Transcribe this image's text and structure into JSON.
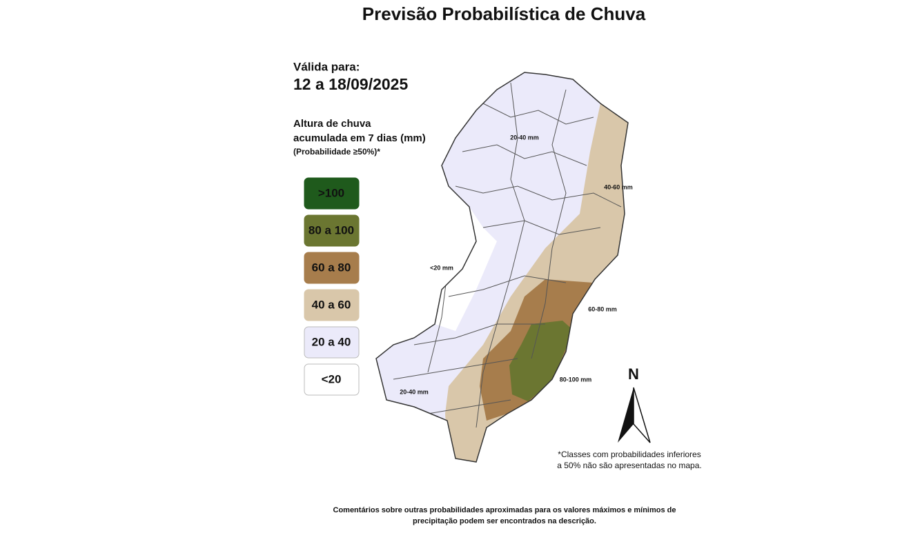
{
  "title": "Previsão Probabilística de Chuva",
  "validity": {
    "label": "Válida para:",
    "period": "12 a 18/09/2025"
  },
  "legend": {
    "title_lines": [
      "Altura de chuva",
      "acumulada em 7 dias (mm)"
    ],
    "subtitle": "(Probabilidade ≥50%)*",
    "items": [
      {
        "label": ">100",
        "color": "#1f5a1c"
      },
      {
        "label": "80 a 100",
        "color": "#6b7631"
      },
      {
        "label": "60 a 80",
        "color": "#a77d4c"
      },
      {
        "label": "40 a 60",
        "color": "#d9c7aa"
      },
      {
        "label": "20 a 40",
        "color": "#ebeafa"
      },
      {
        "label": "<20",
        "color": "#ffffff"
      }
    ]
  },
  "map_labels": [
    "20-40 mm",
    "40-60 mm",
    "<20 mm",
    "60-80 mm",
    "80-100 mm",
    "20-40 mm"
  ],
  "north": "N",
  "footnote_lines": [
    "*Classes com probabilidades inferiores",
    "a 50% não são apresentadas no mapa."
  ],
  "comment_lines": [
    "Comentários sobre outras probabilidades aproximadas para os valores máximos e mínimos de",
    "precipitação podem ser encontrados na descrição."
  ]
}
